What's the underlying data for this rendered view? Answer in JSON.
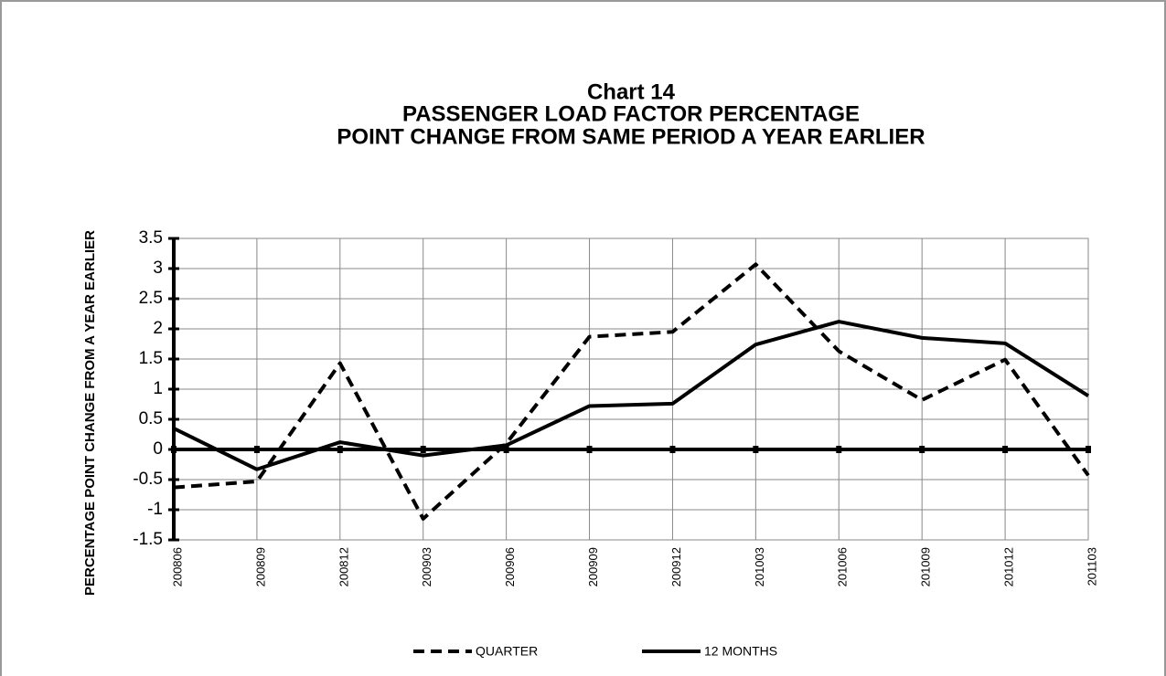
{
  "chart_data": {
    "type": "line",
    "title": "Chart 14",
    "subtitle": [
      "PASSENGER LOAD FACTOR PERCENTAGE",
      "POINT CHANGE FROM SAME PERIOD A YEAR EARLIER"
    ],
    "y_label": "PERCENTAGE POINT CHANGE FROM A YEAR EARLIER",
    "categories": [
      "200806",
      "200809",
      "200812",
      "200903",
      "200906",
      "200909",
      "200912",
      "201003",
      "201006",
      "201009",
      "201012",
      "201103"
    ],
    "series": [
      {
        "name": "QUARTER",
        "color": "#000000",
        "style": "dashed",
        "values": [
          -0.63,
          -0.53,
          1.43,
          -1.15,
          0.1,
          1.87,
          1.95,
          3.07,
          1.63,
          0.82,
          1.49,
          -0.43
        ]
      },
      {
        "name": "12 MONTHS",
        "color": "#000000",
        "style": "solid",
        "values": [
          0.35,
          -0.33,
          0.12,
          -0.1,
          0.07,
          0.72,
          0.76,
          1.74,
          2.12,
          1.85,
          1.76,
          0.89
        ]
      }
    ],
    "ylim": [
      -1.5,
      3.5
    ],
    "yticks": [
      -1.5,
      -1,
      -0.5,
      0,
      0.5,
      1,
      1.5,
      2,
      2.5,
      3,
      3.5
    ],
    "grid": true
  }
}
